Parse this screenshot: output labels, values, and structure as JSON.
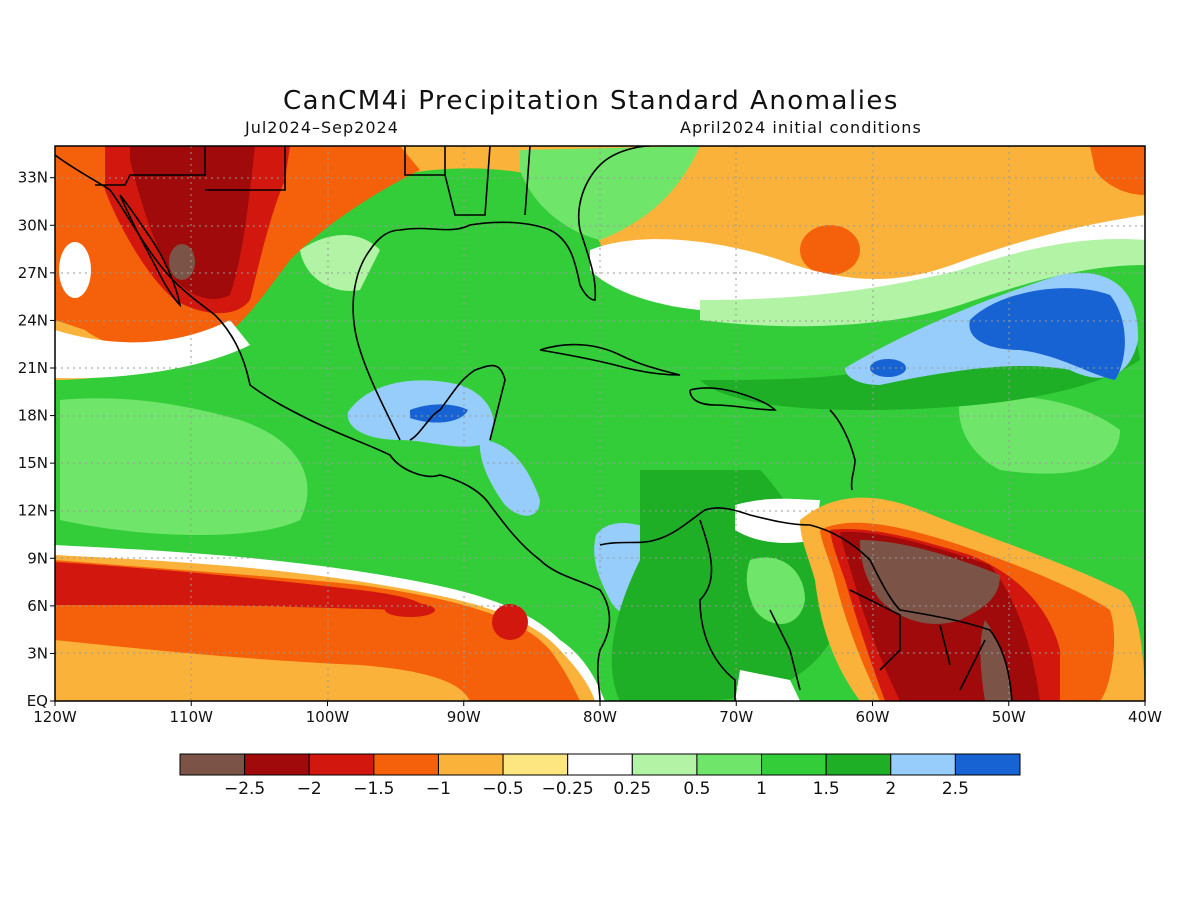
{
  "title": "CanCM4i Precipitation Standard Anomalies",
  "subtitle_left": "Jul2024–Sep2024",
  "subtitle_right": "April2024 initial conditions",
  "map": {
    "lon_range": [
      -120,
      -40
    ],
    "lat_range": [
      0,
      35
    ],
    "lat_ticks": [
      {
        "lat": 33,
        "label": "33N"
      },
      {
        "lat": 30,
        "label": "30N"
      },
      {
        "lat": 27,
        "label": "27N"
      },
      {
        "lat": 24,
        "label": "24N"
      },
      {
        "lat": 21,
        "label": "21N"
      },
      {
        "lat": 18,
        "label": "18N"
      },
      {
        "lat": 15,
        "label": "15N"
      },
      {
        "lat": 12,
        "label": "12N"
      },
      {
        "lat": 9,
        "label": "9N"
      },
      {
        "lat": 6,
        "label": "6N"
      },
      {
        "lat": 3,
        "label": "3N"
      },
      {
        "lat": 0,
        "label": "EQ"
      }
    ],
    "lon_ticks": [
      {
        "lon": -120,
        "label": "120W"
      },
      {
        "lon": -110,
        "label": "110W"
      },
      {
        "lon": -100,
        "label": "100W"
      },
      {
        "lon": -90,
        "label": "90W"
      },
      {
        "lon": -80,
        "label": "80W"
      },
      {
        "lon": -70,
        "label": "70W"
      },
      {
        "lon": -60,
        "label": "60W"
      },
      {
        "lon": -50,
        "label": "50W"
      },
      {
        "lon": -40,
        "label": "40W"
      }
    ],
    "grid": "dotted"
  },
  "colorbar": {
    "colors": [
      "#7b5447",
      "#a00a0a",
      "#d2170e",
      "#f5600a",
      "#fbb23a",
      "#fde67f",
      "#ffffff",
      "#b2f3a6",
      "#6fe56a",
      "#33cd3a",
      "#1faf27",
      "#96cdfa",
      "#1863d4"
    ],
    "labels": [
      "−2.5",
      "−2",
      "−1.5",
      "−1",
      "−0.5",
      "−0.25",
      "0.25",
      "0.5",
      "1",
      "1.5",
      "2",
      "2.5"
    ]
  }
}
